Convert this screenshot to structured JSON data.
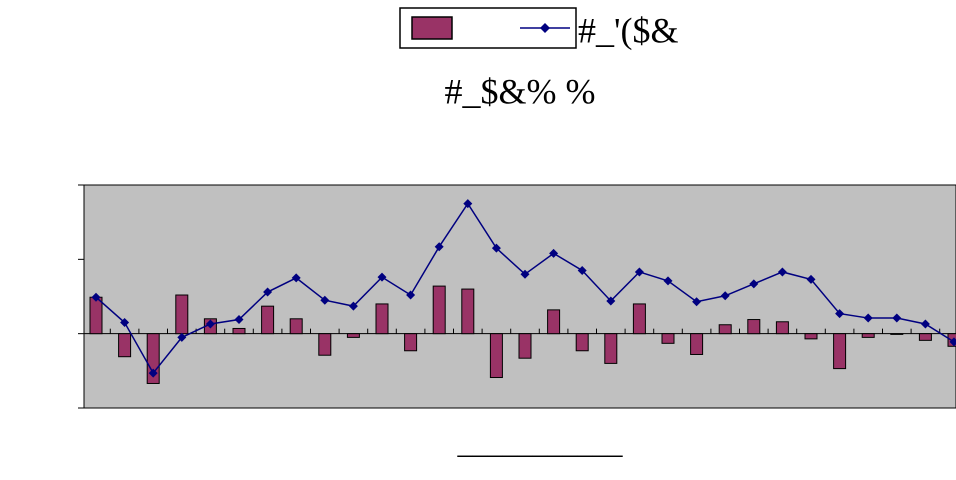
{
  "chart_data": {
    "type": "bar-line",
    "title": "#_$&% %",
    "x_label": "___________",
    "categories": [
      null,
      null,
      null,
      null,
      null,
      null,
      null,
      null,
      null,
      null,
      null,
      null,
      null,
      null,
      null,
      null,
      null,
      null,
      null,
      null,
      null,
      null,
      null,
      null,
      null,
      null,
      null,
      null,
      null,
      null,
      null
    ],
    "series": [
      {
        "name": null,
        "type": "bar",
        "color": "#993366",
        "values": [
          0.49,
          -0.31,
          -0.67,
          0.52,
          0.2,
          0.07,
          0.37,
          0.2,
          -0.29,
          -0.05,
          0.4,
          -0.23,
          0.64,
          0.6,
          -0.59,
          -0.33,
          0.32,
          -0.23,
          -0.4,
          0.4,
          -0.13,
          -0.28,
          0.12,
          0.19,
          0.16,
          -0.07,
          -0.47,
          -0.05,
          -0.01,
          -0.09,
          -0.17
        ]
      },
      {
        "name": "#_'($&",
        "type": "line",
        "color": "#000080",
        "values": [
          0.49,
          0.15,
          -0.53,
          -0.05,
          0.13,
          0.19,
          0.56,
          0.75,
          0.45,
          0.37,
          0.76,
          0.52,
          1.17,
          1.75,
          1.15,
          0.8,
          1.08,
          0.85,
          0.44,
          0.83,
          0.71,
          0.43,
          0.51,
          0.67,
          0.83,
          0.73,
          0.27,
          0.21,
          0.21,
          0.13,
          -0.11
        ]
      }
    ],
    "ylim": [
      -1,
      2
    ],
    "yticks": [
      -1,
      0,
      1,
      2
    ],
    "plot_background": "#c0c0c0"
  }
}
